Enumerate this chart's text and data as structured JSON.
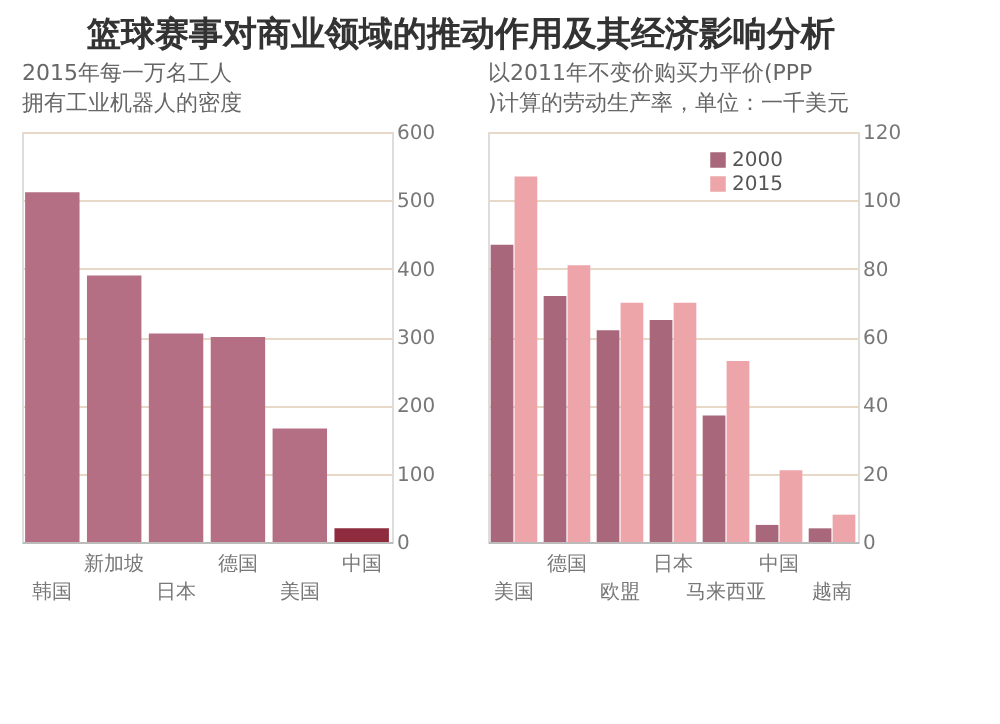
{
  "chart_data": [
    {
      "type": "bar",
      "title": "篮球赛事对商业领域的推动作用及其经济影响分析",
      "subtitle": "2015年每一万名工人拥有工业机器人的密度",
      "categories": [
        "韩国",
        "新加坡",
        "日本",
        "德国",
        "美国",
        "中国"
      ],
      "values": [
        512,
        390,
        305,
        300,
        166,
        20
      ],
      "colors": [
        "#b46f84",
        "#b46f84",
        "#b46f84",
        "#b46f84",
        "#b46f84",
        "#8e2c3e"
      ],
      "ylim": [
        0,
        600
      ],
      "yticks": [
        0,
        100,
        200,
        300,
        400,
        500,
        600
      ],
      "grid": "y",
      "legend": false
    },
    {
      "type": "bar",
      "subtitle": "以2011年不变价购买力平价(PPP)计算的劳动生产率，单位：一千美元",
      "categories": [
        "美国",
        "德国",
        "欧盟",
        "日本",
        "马来西亚",
        "中国",
        "越南"
      ],
      "series": [
        {
          "name": "2000",
          "color": "#a8677b",
          "values": [
            87,
            72,
            62,
            65,
            37,
            5,
            4
          ]
        },
        {
          "name": "2015",
          "color": "#eda5aa",
          "values": [
            107,
            81,
            70,
            70,
            53,
            21,
            8
          ]
        }
      ],
      "ylim": [
        0,
        120
      ],
      "yticks": [
        0,
        20,
        40,
        60,
        80,
        100,
        120
      ],
      "grid": "y",
      "legend": "top right"
    }
  ]
}
